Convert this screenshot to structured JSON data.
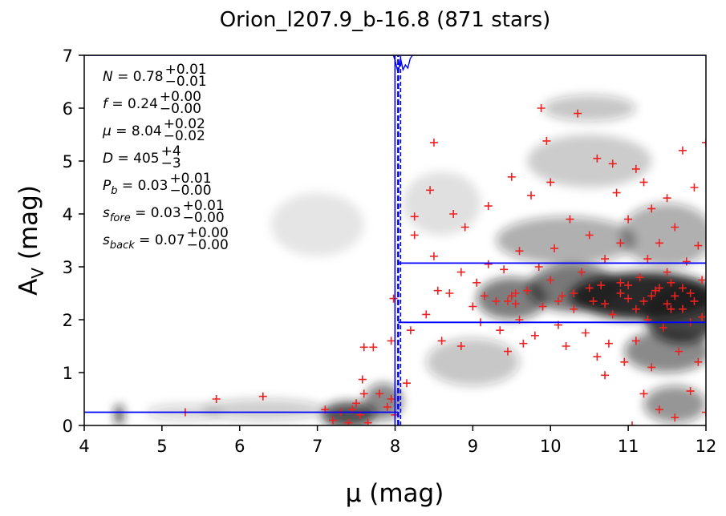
{
  "chart_data": {
    "type": "scatter",
    "title": "Orion_l207.9_b-16.8 (871 stars)",
    "xlabel": "μ (mag)",
    "ylabel_main": "A",
    "ylabel_sub": "V",
    "ylabel_unit": " (mag)",
    "xlim": [
      4,
      12
    ],
    "ylim": [
      0,
      7
    ],
    "xticks": [
      "4",
      "5",
      "6",
      "7",
      "8",
      "9",
      "10",
      "11",
      "12"
    ],
    "yticks": [
      "0",
      "1",
      "2",
      "3",
      "4",
      "5",
      "6",
      "7"
    ],
    "colors": {
      "stars": "#ee2222",
      "model": "#0000ff",
      "density": "#1a1a1a"
    },
    "annotations": [
      {
        "lhs": "N",
        "lhs_sub": "",
        "value": "0.78",
        "upper": "+0.01",
        "lower": "−0.01"
      },
      {
        "lhs": "f",
        "lhs_sub": "",
        "value": "0.24",
        "upper": "+0.00",
        "lower": "−0.00"
      },
      {
        "lhs": "μ",
        "lhs_sub": "",
        "value": "8.04",
        "upper": "+0.02",
        "lower": "−0.02"
      },
      {
        "lhs": "D",
        "lhs_sub": "",
        "value": "405",
        "upper": "+4",
        "lower": "−3"
      },
      {
        "lhs": "P",
        "lhs_sub": "b",
        "value": "0.03",
        "upper": "+0.01",
        "lower": "−0.00"
      },
      {
        "lhs": "s",
        "lhs_sub": "fore",
        "value": "0.03",
        "upper": "+0.01",
        "lower": "−0.00"
      },
      {
        "lhs": "s",
        "lhs_sub": "back",
        "value": "0.07",
        "upper": "+0.00",
        "lower": "−0.00"
      }
    ],
    "model": {
      "distance_modulus": 8.04,
      "foreground_extinction": 0.25,
      "background_extinction_band": [
        1.95,
        3.07
      ]
    },
    "density_blobs": [
      {
        "x": 11.2,
        "y": 2.45,
        "sx": 0.95,
        "sy": 0.45,
        "a": 0.95
      },
      {
        "x": 11.7,
        "y": 2.1,
        "sx": 0.5,
        "sy": 0.55,
        "a": 0.8
      },
      {
        "x": 10.3,
        "y": 2.6,
        "sx": 0.6,
        "sy": 0.45,
        "a": 0.6
      },
      {
        "x": 9.5,
        "y": 2.4,
        "sx": 0.45,
        "sy": 0.4,
        "a": 0.55
      },
      {
        "x": 10.2,
        "y": 3.5,
        "sx": 0.9,
        "sy": 0.45,
        "a": 0.35
      },
      {
        "x": 11.5,
        "y": 3.6,
        "sx": 0.6,
        "sy": 0.6,
        "a": 0.35
      },
      {
        "x": 10.5,
        "y": 6.0,
        "sx": 0.6,
        "sy": 0.25,
        "a": 0.25
      },
      {
        "x": 10.5,
        "y": 5.0,
        "sx": 0.8,
        "sy": 0.5,
        "a": 0.2
      },
      {
        "x": 11.5,
        "y": 1.4,
        "sx": 0.55,
        "sy": 0.4,
        "a": 0.5
      },
      {
        "x": 11.6,
        "y": 0.4,
        "sx": 0.4,
        "sy": 0.35,
        "a": 0.45
      },
      {
        "x": 9.0,
        "y": 1.2,
        "sx": 0.6,
        "sy": 0.45,
        "a": 0.25
      },
      {
        "x": 7.4,
        "y": 0.2,
        "sx": 0.35,
        "sy": 0.25,
        "a": 0.75
      },
      {
        "x": 7.85,
        "y": 0.45,
        "sx": 0.25,
        "sy": 0.35,
        "a": 0.5
      },
      {
        "x": 6.3,
        "y": 0.3,
        "sx": 0.8,
        "sy": 0.2,
        "a": 0.22
      },
      {
        "x": 5.3,
        "y": 0.25,
        "sx": 0.5,
        "sy": 0.15,
        "a": 0.18
      },
      {
        "x": 4.45,
        "y": 0.2,
        "sx": 0.05,
        "sy": 0.2,
        "a": 0.9
      },
      {
        "x": 7.0,
        "y": 3.8,
        "sx": 0.6,
        "sy": 0.6,
        "a": 0.1
      },
      {
        "x": 8.6,
        "y": 4.2,
        "sx": 0.5,
        "sy": 0.6,
        "a": 0.12
      }
    ],
    "points": [
      [
        5.3,
        0.25
      ],
      [
        5.7,
        0.5
      ],
      [
        6.3,
        0.55
      ],
      [
        7.1,
        0.3
      ],
      [
        7.2,
        0.1
      ],
      [
        7.3,
        0.25
      ],
      [
        7.4,
        0.05
      ],
      [
        7.45,
        0.3
      ],
      [
        7.5,
        0.42
      ],
      [
        7.55,
        0.2
      ],
      [
        7.6,
        0.6
      ],
      [
        7.65,
        0.05
      ],
      [
        7.58,
        0.87
      ],
      [
        7.6,
        1.48
      ],
      [
        7.72,
        1.48
      ],
      [
        7.8,
        0.6
      ],
      [
        7.9,
        0.35
      ],
      [
        7.95,
        0.5
      ],
      [
        8.0,
        0.2
      ],
      [
        7.95,
        1.6
      ],
      [
        7.98,
        2.4
      ],
      [
        8.15,
        0.8
      ],
      [
        8.2,
        1.8
      ],
      [
        8.25,
        3.6
      ],
      [
        8.25,
        3.95
      ],
      [
        8.4,
        2.1
      ],
      [
        8.45,
        4.45
      ],
      [
        8.5,
        5.35
      ],
      [
        8.5,
        3.2
      ],
      [
        8.55,
        2.55
      ],
      [
        8.6,
        1.6
      ],
      [
        8.7,
        2.5
      ],
      [
        8.75,
        4.0
      ],
      [
        8.85,
        2.9
      ],
      [
        8.9,
        3.75
      ],
      [
        8.85,
        1.5
      ],
      [
        9.0,
        2.25
      ],
      [
        9.05,
        2.7
      ],
      [
        9.1,
        1.95
      ],
      [
        9.15,
        2.45
      ],
      [
        9.2,
        3.05
      ],
      [
        9.2,
        4.15
      ],
      [
        9.3,
        2.35
      ],
      [
        9.35,
        1.8
      ],
      [
        9.4,
        2.95
      ],
      [
        9.45,
        1.4
      ],
      [
        9.5,
        4.7
      ],
      [
        9.55,
        2.3
      ],
      [
        9.6,
        2.0
      ],
      [
        9.6,
        3.3
      ],
      [
        9.65,
        1.55
      ],
      [
        9.7,
        2.55
      ],
      [
        9.75,
        4.35
      ],
      [
        9.8,
        1.7
      ],
      [
        9.85,
        3.0
      ],
      [
        9.88,
        6.0
      ],
      [
        9.9,
        2.25
      ],
      [
        9.95,
        5.38
      ],
      [
        10.0,
        2.75
      ],
      [
        10.0,
        4.6
      ],
      [
        10.05,
        3.35
      ],
      [
        10.1,
        1.9
      ],
      [
        10.15,
        2.45
      ],
      [
        10.2,
        1.5
      ],
      [
        10.25,
        3.9
      ],
      [
        10.3,
        2.2
      ],
      [
        10.35,
        5.9
      ],
      [
        10.4,
        2.9
      ],
      [
        10.45,
        1.75
      ],
      [
        10.5,
        3.6
      ],
      [
        10.55,
        2.35
      ],
      [
        10.6,
        5.05
      ],
      [
        10.6,
        1.3
      ],
      [
        10.65,
        2.65
      ],
      [
        10.7,
        3.15
      ],
      [
        10.7,
        0.95
      ],
      [
        10.75,
        1.55
      ],
      [
        10.8,
        4.95
      ],
      [
        10.8,
        2.1
      ],
      [
        10.85,
        4.4
      ],
      [
        10.9,
        3.45
      ],
      [
        10.9,
        2.7
      ],
      [
        10.95,
        1.2
      ],
      [
        11.0,
        3.9
      ],
      [
        11.0,
        2.4
      ],
      [
        11.05,
        0.0
      ],
      [
        11.1,
        1.6
      ],
      [
        11.1,
        4.85
      ],
      [
        11.15,
        2.8
      ],
      [
        11.2,
        4.6
      ],
      [
        11.2,
        0.6
      ],
      [
        11.25,
        3.15
      ],
      [
        11.25,
        2.0
      ],
      [
        11.3,
        1.1
      ],
      [
        11.3,
        4.1
      ],
      [
        11.35,
        2.55
      ],
      [
        11.4,
        3.45
      ],
      [
        11.4,
        0.3
      ],
      [
        11.45,
        1.85
      ],
      [
        11.5,
        2.9
      ],
      [
        11.5,
        4.3
      ],
      [
        11.55,
        2.2
      ],
      [
        11.6,
        3.75
      ],
      [
        11.6,
        0.15
      ],
      [
        11.65,
        1.4
      ],
      [
        11.7,
        2.6
      ],
      [
        11.7,
        5.2
      ],
      [
        11.75,
        3.1
      ],
      [
        11.8,
        1.95
      ],
      [
        11.8,
        0.65
      ],
      [
        11.85,
        2.35
      ],
      [
        11.85,
        4.5
      ],
      [
        11.9,
        3.4
      ],
      [
        11.9,
        1.2
      ],
      [
        11.95,
        2.75
      ],
      [
        12.0,
        5.35
      ],
      [
        12.0,
        0.25
      ],
      [
        11.95,
        2.05
      ],
      [
        11.6,
        2.45
      ],
      [
        11.5,
        2.3
      ],
      [
        11.3,
        2.45
      ],
      [
        11.1,
        2.2
      ],
      [
        10.9,
        2.5
      ],
      [
        10.7,
        2.3
      ],
      [
        10.5,
        2.6
      ],
      [
        10.3,
        2.5
      ],
      [
        10.1,
        2.35
      ],
      [
        9.5,
        2.45
      ],
      [
        9.45,
        2.35
      ],
      [
        9.55,
        2.5
      ],
      [
        11.7,
        2.2
      ],
      [
        11.4,
        2.6
      ],
      [
        11.2,
        2.35
      ],
      [
        11.0,
        2.65
      ],
      [
        11.8,
        2.5
      ],
      [
        11.55,
        2.7
      ]
    ]
  }
}
